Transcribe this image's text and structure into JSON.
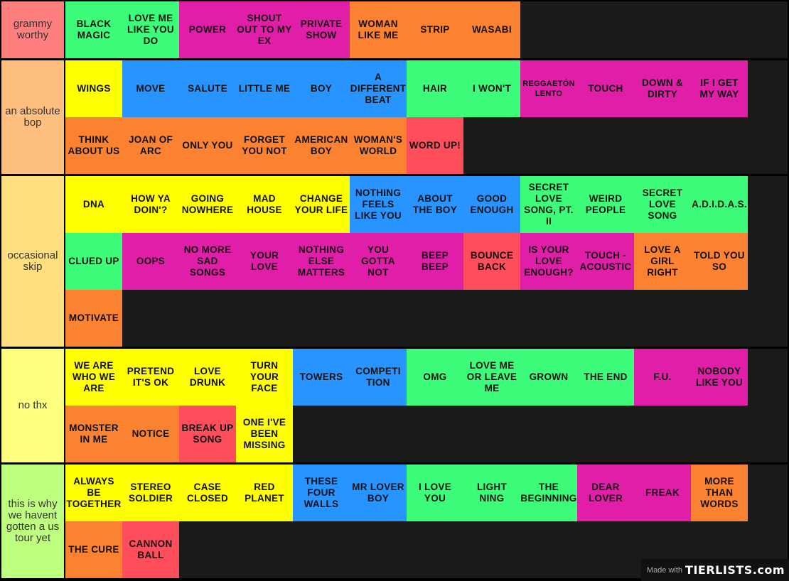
{
  "colors": {
    "g": "#3dfc79",
    "m": "#e11ea8",
    "y": "#ffff00",
    "b": "#2894ff",
    "o": "#fb8231",
    "r": "#fe4e5c"
  },
  "tiers": [
    {
      "label": "grammy worthy",
      "color": "#ff7f7f",
      "rows": 1,
      "items": [
        {
          "text": "BLACK MAGIC",
          "c": "g"
        },
        {
          "text": "LOVE ME LIKE YOU DO",
          "c": "g"
        },
        {
          "text": "POWER",
          "c": "m"
        },
        {
          "text": "SHOUT OUT TO MY EX",
          "c": "m"
        },
        {
          "text": "PRIVATE SHOW",
          "c": "m"
        },
        {
          "text": "WOMAN LIKE ME",
          "c": "o"
        },
        {
          "text": "STRIP",
          "c": "o"
        },
        {
          "text": "WASABI",
          "c": "o"
        }
      ]
    },
    {
      "label": "an absolute bop",
      "color": "#ffbf7f",
      "rows": 2,
      "items": [
        {
          "text": "WINGS",
          "c": "y"
        },
        {
          "text": "MOVE",
          "c": "b"
        },
        {
          "text": "SALUTE",
          "c": "b"
        },
        {
          "text": "LITTLE ME",
          "c": "b"
        },
        {
          "text": "BOY",
          "c": "b"
        },
        {
          "text": "A DIFFERENT BEAT",
          "c": "b"
        },
        {
          "text": "HAIR",
          "c": "g"
        },
        {
          "text": "I WON'T",
          "c": "g"
        },
        {
          "text": "REGGAETÓN LENTO",
          "c": "m"
        },
        {
          "text": "TOUCH",
          "c": "m"
        },
        {
          "text": "DOWN & DIRTY",
          "c": "m"
        },
        {
          "text": "IF I GET MY WAY",
          "c": "m"
        },
        {
          "text": "THINK ABOUT US",
          "c": "o"
        },
        {
          "text": "JOAN OF ARC",
          "c": "o"
        },
        {
          "text": "ONLY YOU",
          "c": "o"
        },
        {
          "text": "FORGET YOU NOT",
          "c": "o"
        },
        {
          "text": "AMERICAN BOY",
          "c": "o"
        },
        {
          "text": "WOMAN'S WORLD",
          "c": "o"
        },
        {
          "text": "WORD UP!",
          "c": "r"
        }
      ]
    },
    {
      "label": "occasional skip",
      "color": "#ffdf7f",
      "rows": 3,
      "items": [
        {
          "text": "DNA",
          "c": "y"
        },
        {
          "text": "HOW YA DOIN'?",
          "c": "y"
        },
        {
          "text": "GOING NOWHERE",
          "c": "y"
        },
        {
          "text": "MAD HOUSE",
          "c": "y"
        },
        {
          "text": "CHANGE YOUR LIFE",
          "c": "y"
        },
        {
          "text": "NOTHING FEELS LIKE YOU",
          "c": "b"
        },
        {
          "text": "ABOUT THE BOY",
          "c": "b"
        },
        {
          "text": "GOOD ENOUGH",
          "c": "b"
        },
        {
          "text": "SECRET LOVE SONG, PT. II",
          "c": "g"
        },
        {
          "text": "WEIRD PEOPLE",
          "c": "g"
        },
        {
          "text": "SECRET LOVE SONG",
          "c": "g"
        },
        {
          "text": "A.D.I.D.A.S.",
          "c": "g"
        },
        {
          "text": "CLUED UP",
          "c": "g"
        },
        {
          "text": "OOPS",
          "c": "m"
        },
        {
          "text": "NO MORE SAD SONGS",
          "c": "m"
        },
        {
          "text": "YOUR LOVE",
          "c": "m"
        },
        {
          "text": "NOTHING ELSE MATTERS",
          "c": "m"
        },
        {
          "text": "YOU GOTTA NOT",
          "c": "m"
        },
        {
          "text": "BEEP BEEP",
          "c": "m"
        },
        {
          "text": "BOUNCE BACK",
          "c": "r"
        },
        {
          "text": "IS YOUR LOVE ENOUGH?",
          "c": "m"
        },
        {
          "text": "TOUCH - ACOUSTIC",
          "c": "m"
        },
        {
          "text": "LOVE A GIRL RIGHT",
          "c": "o"
        },
        {
          "text": "TOLD YOU SO",
          "c": "o"
        },
        {
          "text": "MOTIVATE",
          "c": "o"
        }
      ]
    },
    {
      "label": "no thx",
      "color": "#ffff7f",
      "rows": 2,
      "items": [
        {
          "text": "WE ARE WHO WE ARE",
          "c": "y"
        },
        {
          "text": "PRETEND IT'S OK",
          "c": "y"
        },
        {
          "text": "LOVE DRUNK",
          "c": "y"
        },
        {
          "text": "TURN YOUR FACE",
          "c": "y"
        },
        {
          "text": "TOWERS",
          "c": "b"
        },
        {
          "text": "COMPETI TION",
          "c": "b"
        },
        {
          "text": "OMG",
          "c": "g"
        },
        {
          "text": "LOVE ME OR LEAVE ME",
          "c": "g"
        },
        {
          "text": "GROWN",
          "c": "g"
        },
        {
          "text": "THE END",
          "c": "g"
        },
        {
          "text": "F.U.",
          "c": "m"
        },
        {
          "text": "NOBODY LIKE YOU",
          "c": "m"
        },
        {
          "text": "MONSTER IN ME",
          "c": "o"
        },
        {
          "text": "NOTICE",
          "c": "o"
        },
        {
          "text": "BREAK UP SONG",
          "c": "r"
        },
        {
          "text": "ONE I'VE BEEN MISSING",
          "c": "y"
        }
      ]
    },
    {
      "label": "this is why we havent gotten a us tour yet",
      "color": "#bfff7f",
      "rows": 2,
      "items": [
        {
          "text": "ALWAYS BE TOGETHER",
          "c": "y"
        },
        {
          "text": "STEREO SOLDIER",
          "c": "y"
        },
        {
          "text": "CASE CLOSED",
          "c": "y"
        },
        {
          "text": "RED PLANET",
          "c": "y"
        },
        {
          "text": "THESE FOUR WALLS",
          "c": "b"
        },
        {
          "text": "MR LOVER BOY",
          "c": "b"
        },
        {
          "text": "I LOVE YOU",
          "c": "g"
        },
        {
          "text": "LIGHT NING",
          "c": "g"
        },
        {
          "text": "THE BEGINNING",
          "c": "g"
        },
        {
          "text": "DEAR LOVER",
          "c": "m"
        },
        {
          "text": "FREAK",
          "c": "m"
        },
        {
          "text": "MORE THAN WORDS",
          "c": "o"
        },
        {
          "text": "THE CURE",
          "c": "o"
        },
        {
          "text": "CANNON BALL",
          "c": "r"
        }
      ]
    }
  ],
  "watermark": {
    "prefix": "Made with",
    "brand": "TIERLISTS.com"
  }
}
